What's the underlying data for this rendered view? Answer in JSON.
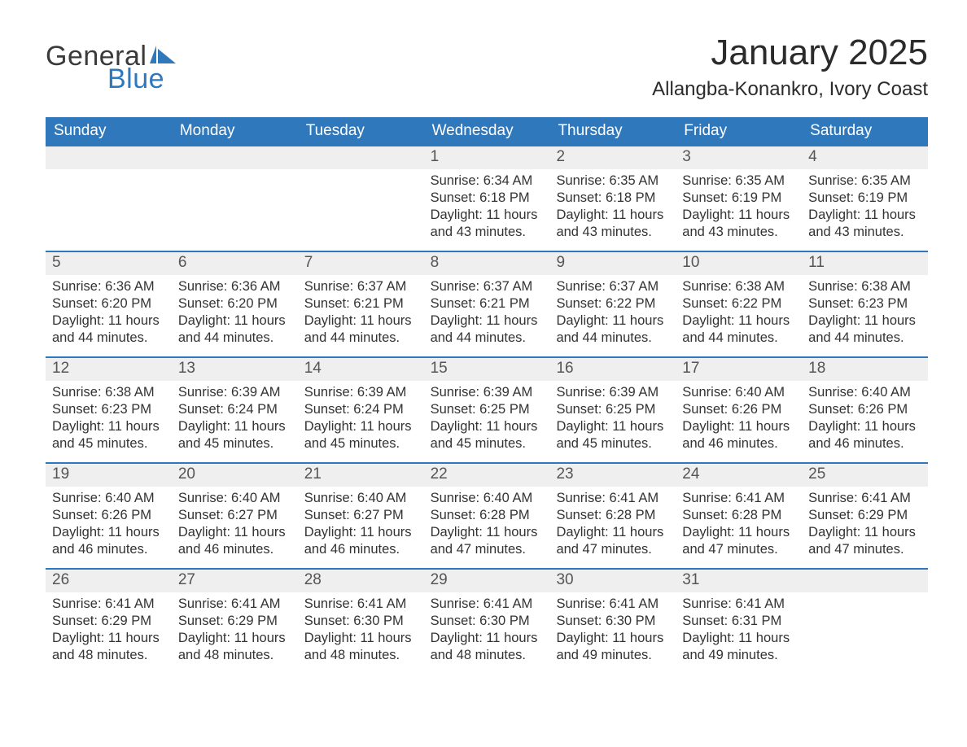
{
  "logo": {
    "line1": "General",
    "line2": "Blue"
  },
  "header": {
    "title": "January 2025",
    "subtitle": "Allangba-Konankro, Ivory Coast"
  },
  "colors": {
    "accent": "#3078bc",
    "header_bg": "#3078bc",
    "header_text": "#ffffff",
    "daynum_bg": "#efefef",
    "daynum_text": "#555555",
    "body_text": "#333333",
    "page_bg": "#ffffff"
  },
  "calendar": {
    "day_labels": [
      "Sunday",
      "Monday",
      "Tuesday",
      "Wednesday",
      "Thursday",
      "Friday",
      "Saturday"
    ],
    "weeks": [
      [
        null,
        null,
        null,
        {
          "n": "1",
          "sunrise": "6:34 AM",
          "sunset": "6:18 PM",
          "daylight": "11 hours and 43 minutes."
        },
        {
          "n": "2",
          "sunrise": "6:35 AM",
          "sunset": "6:18 PM",
          "daylight": "11 hours and 43 minutes."
        },
        {
          "n": "3",
          "sunrise": "6:35 AM",
          "sunset": "6:19 PM",
          "daylight": "11 hours and 43 minutes."
        },
        {
          "n": "4",
          "sunrise": "6:35 AM",
          "sunset": "6:19 PM",
          "daylight": "11 hours and 43 minutes."
        }
      ],
      [
        {
          "n": "5",
          "sunrise": "6:36 AM",
          "sunset": "6:20 PM",
          "daylight": "11 hours and 44 minutes."
        },
        {
          "n": "6",
          "sunrise": "6:36 AM",
          "sunset": "6:20 PM",
          "daylight": "11 hours and 44 minutes."
        },
        {
          "n": "7",
          "sunrise": "6:37 AM",
          "sunset": "6:21 PM",
          "daylight": "11 hours and 44 minutes."
        },
        {
          "n": "8",
          "sunrise": "6:37 AM",
          "sunset": "6:21 PM",
          "daylight": "11 hours and 44 minutes."
        },
        {
          "n": "9",
          "sunrise": "6:37 AM",
          "sunset": "6:22 PM",
          "daylight": "11 hours and 44 minutes."
        },
        {
          "n": "10",
          "sunrise": "6:38 AM",
          "sunset": "6:22 PM",
          "daylight": "11 hours and 44 minutes."
        },
        {
          "n": "11",
          "sunrise": "6:38 AM",
          "sunset": "6:23 PM",
          "daylight": "11 hours and 44 minutes."
        }
      ],
      [
        {
          "n": "12",
          "sunrise": "6:38 AM",
          "sunset": "6:23 PM",
          "daylight": "11 hours and 45 minutes."
        },
        {
          "n": "13",
          "sunrise": "6:39 AM",
          "sunset": "6:24 PM",
          "daylight": "11 hours and 45 minutes."
        },
        {
          "n": "14",
          "sunrise": "6:39 AM",
          "sunset": "6:24 PM",
          "daylight": "11 hours and 45 minutes."
        },
        {
          "n": "15",
          "sunrise": "6:39 AM",
          "sunset": "6:25 PM",
          "daylight": "11 hours and 45 minutes."
        },
        {
          "n": "16",
          "sunrise": "6:39 AM",
          "sunset": "6:25 PM",
          "daylight": "11 hours and 45 minutes."
        },
        {
          "n": "17",
          "sunrise": "6:40 AM",
          "sunset": "6:26 PM",
          "daylight": "11 hours and 46 minutes."
        },
        {
          "n": "18",
          "sunrise": "6:40 AM",
          "sunset": "6:26 PM",
          "daylight": "11 hours and 46 minutes."
        }
      ],
      [
        {
          "n": "19",
          "sunrise": "6:40 AM",
          "sunset": "6:26 PM",
          "daylight": "11 hours and 46 minutes."
        },
        {
          "n": "20",
          "sunrise": "6:40 AM",
          "sunset": "6:27 PM",
          "daylight": "11 hours and 46 minutes."
        },
        {
          "n": "21",
          "sunrise": "6:40 AM",
          "sunset": "6:27 PM",
          "daylight": "11 hours and 46 minutes."
        },
        {
          "n": "22",
          "sunrise": "6:40 AM",
          "sunset": "6:28 PM",
          "daylight": "11 hours and 47 minutes."
        },
        {
          "n": "23",
          "sunrise": "6:41 AM",
          "sunset": "6:28 PM",
          "daylight": "11 hours and 47 minutes."
        },
        {
          "n": "24",
          "sunrise": "6:41 AM",
          "sunset": "6:28 PM",
          "daylight": "11 hours and 47 minutes."
        },
        {
          "n": "25",
          "sunrise": "6:41 AM",
          "sunset": "6:29 PM",
          "daylight": "11 hours and 47 minutes."
        }
      ],
      [
        {
          "n": "26",
          "sunrise": "6:41 AM",
          "sunset": "6:29 PM",
          "daylight": "11 hours and 48 minutes."
        },
        {
          "n": "27",
          "sunrise": "6:41 AM",
          "sunset": "6:29 PM",
          "daylight": "11 hours and 48 minutes."
        },
        {
          "n": "28",
          "sunrise": "6:41 AM",
          "sunset": "6:30 PM",
          "daylight": "11 hours and 48 minutes."
        },
        {
          "n": "29",
          "sunrise": "6:41 AM",
          "sunset": "6:30 PM",
          "daylight": "11 hours and 48 minutes."
        },
        {
          "n": "30",
          "sunrise": "6:41 AM",
          "sunset": "6:30 PM",
          "daylight": "11 hours and 49 minutes."
        },
        {
          "n": "31",
          "sunrise": "6:41 AM",
          "sunset": "6:31 PM",
          "daylight": "11 hours and 49 minutes."
        },
        null
      ]
    ],
    "labels": {
      "sunrise": "Sunrise",
      "sunset": "Sunset",
      "daylight": "Daylight"
    }
  }
}
